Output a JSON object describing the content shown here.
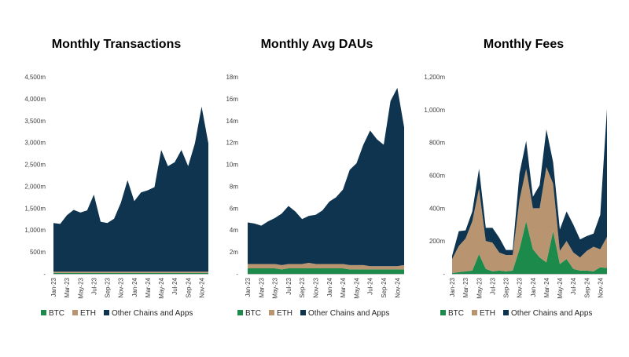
{
  "colors": {
    "btc": "#1b8a4b",
    "eth": "#b89570",
    "other": "#0f3450",
    "axis": "#bfbfbf"
  },
  "legend": {
    "btc": "BTC",
    "eth": "ETH",
    "other": "Other Chains and Apps"
  },
  "x_ticks": [
    "Jan-23",
    "Mar-23",
    "May-23",
    "Jul-23",
    "Sep-23",
    "Nov-23",
    "Jan-24",
    "Mar-24",
    "May-24",
    "Jul-24",
    "Sep-24",
    "Nov-24"
  ],
  "chart_data": [
    {
      "type": "area",
      "stacked": true,
      "title": "Monthly Transactions",
      "categories": [
        "Jan-23",
        "Feb-23",
        "Mar-23",
        "Apr-23",
        "May-23",
        "Jun-23",
        "Jul-23",
        "Aug-23",
        "Sep-23",
        "Oct-23",
        "Nov-23",
        "Dec-23",
        "Jan-24",
        "Feb-24",
        "Mar-24",
        "Apr-24",
        "May-24",
        "Jun-24",
        "Jul-24",
        "Aug-24",
        "Sep-24",
        "Oct-24",
        "Nov-24",
        "Dec-24"
      ],
      "ylim": [
        0,
        4500
      ],
      "y_ticks": [
        "-",
        "500m",
        "1,000m",
        "1,500m",
        "2,000m",
        "2,500m",
        "3,000m",
        "3,500m",
        "4,000m",
        "4,500m"
      ],
      "series": [
        {
          "name": "BTC",
          "values": [
            20,
            20,
            20,
            20,
            20,
            20,
            20,
            20,
            20,
            20,
            20,
            20,
            20,
            20,
            20,
            20,
            20,
            20,
            20,
            20,
            20,
            20,
            20,
            20
          ]
        },
        {
          "name": "ETH",
          "values": [
            30,
            30,
            30,
            30,
            30,
            30,
            30,
            30,
            30,
            30,
            30,
            30,
            30,
            30,
            30,
            30,
            30,
            30,
            30,
            30,
            30,
            30,
            30,
            30
          ]
        },
        {
          "name": "Other Chains and Apps",
          "values": [
            1110,
            1090,
            1290,
            1410,
            1350,
            1400,
            1760,
            1140,
            1110,
            1210,
            1570,
            2090,
            1610,
            1810,
            1860,
            1930,
            2780,
            2410,
            2500,
            2780,
            2410,
            2930,
            3770,
            2930
          ]
        }
      ]
    },
    {
      "type": "area",
      "stacked": true,
      "title": "Monthly Avg DAUs",
      "categories": [
        "Jan-23",
        "Feb-23",
        "Mar-23",
        "Apr-23",
        "May-23",
        "Jun-23",
        "Jul-23",
        "Aug-23",
        "Sep-23",
        "Oct-23",
        "Nov-23",
        "Dec-23",
        "Jan-24",
        "Feb-24",
        "Mar-24",
        "Apr-24",
        "May-24",
        "Jun-24",
        "Jul-24",
        "Aug-24",
        "Sep-24",
        "Oct-24",
        "Nov-24",
        "Dec-24"
      ],
      "ylim": [
        0,
        18
      ],
      "y_ticks": [
        "-",
        "2m",
        "4m",
        "6m",
        "8m",
        "10m",
        "12m",
        "14m",
        "16m",
        "18m"
      ],
      "series": [
        {
          "name": "BTC",
          "values": [
            0.5,
            0.5,
            0.5,
            0.5,
            0.5,
            0.4,
            0.5,
            0.5,
            0.5,
            0.5,
            0.5,
            0.5,
            0.5,
            0.5,
            0.5,
            0.4,
            0.4,
            0.4,
            0.4,
            0.4,
            0.4,
            0.4,
            0.4,
            0.4
          ]
        },
        {
          "name": "ETH",
          "values": [
            0.4,
            0.4,
            0.4,
            0.4,
            0.4,
            0.4,
            0.4,
            0.4,
            0.4,
            0.5,
            0.4,
            0.4,
            0.4,
            0.4,
            0.4,
            0.4,
            0.4,
            0.4,
            0.3,
            0.3,
            0.3,
            0.3,
            0.3,
            0.4
          ]
        },
        {
          "name": "Other Chains and Apps",
          "values": [
            3.8,
            3.7,
            3.5,
            3.9,
            4.2,
            4.7,
            5.3,
            4.8,
            4.1,
            4.3,
            4.5,
            4.9,
            5.7,
            6.1,
            6.8,
            8.7,
            9.3,
            11.0,
            12.4,
            11.6,
            11.1,
            15.1,
            16.3,
            12.6
          ]
        }
      ]
    },
    {
      "type": "area",
      "stacked": true,
      "title": "Monthly Fees",
      "categories": [
        "Jan-23",
        "Feb-23",
        "Mar-23",
        "Apr-23",
        "May-23",
        "Jun-23",
        "Jul-23",
        "Aug-23",
        "Sep-23",
        "Oct-23",
        "Nov-23",
        "Dec-23",
        "Jan-24",
        "Feb-24",
        "Mar-24",
        "Apr-24",
        "May-24",
        "Jun-24",
        "Jul-24",
        "Aug-24",
        "Sep-24",
        "Oct-24",
        "Nov-24",
        "Dec-24"
      ],
      "ylim": [
        0,
        1200
      ],
      "y_ticks": [
        "-",
        "200m",
        "400m",
        "600m",
        "800m",
        "1,000m",
        "1,200m"
      ],
      "series": [
        {
          "name": "BTC",
          "values": [
            5,
            10,
            15,
            20,
            120,
            30,
            15,
            20,
            15,
            20,
            150,
            320,
            150,
            100,
            70,
            260,
            60,
            90,
            30,
            20,
            20,
            15,
            40,
            35
          ]
        },
        {
          "name": "ETH",
          "values": [
            85,
            160,
            200,
            300,
            400,
            170,
            175,
            110,
            100,
            95,
            300,
            320,
            250,
            300,
            580,
            290,
            80,
            110,
            100,
            80,
            120,
            150,
            110,
            190
          ]
        },
        {
          "name": "Other Chains and Apps",
          "values": [
            20,
            90,
            50,
            60,
            120,
            80,
            90,
            90,
            30,
            30,
            160,
            170,
            70,
            140,
            230,
            130,
            130,
            180,
            170,
            110,
            90,
            80,
            210,
            780
          ]
        }
      ]
    }
  ]
}
